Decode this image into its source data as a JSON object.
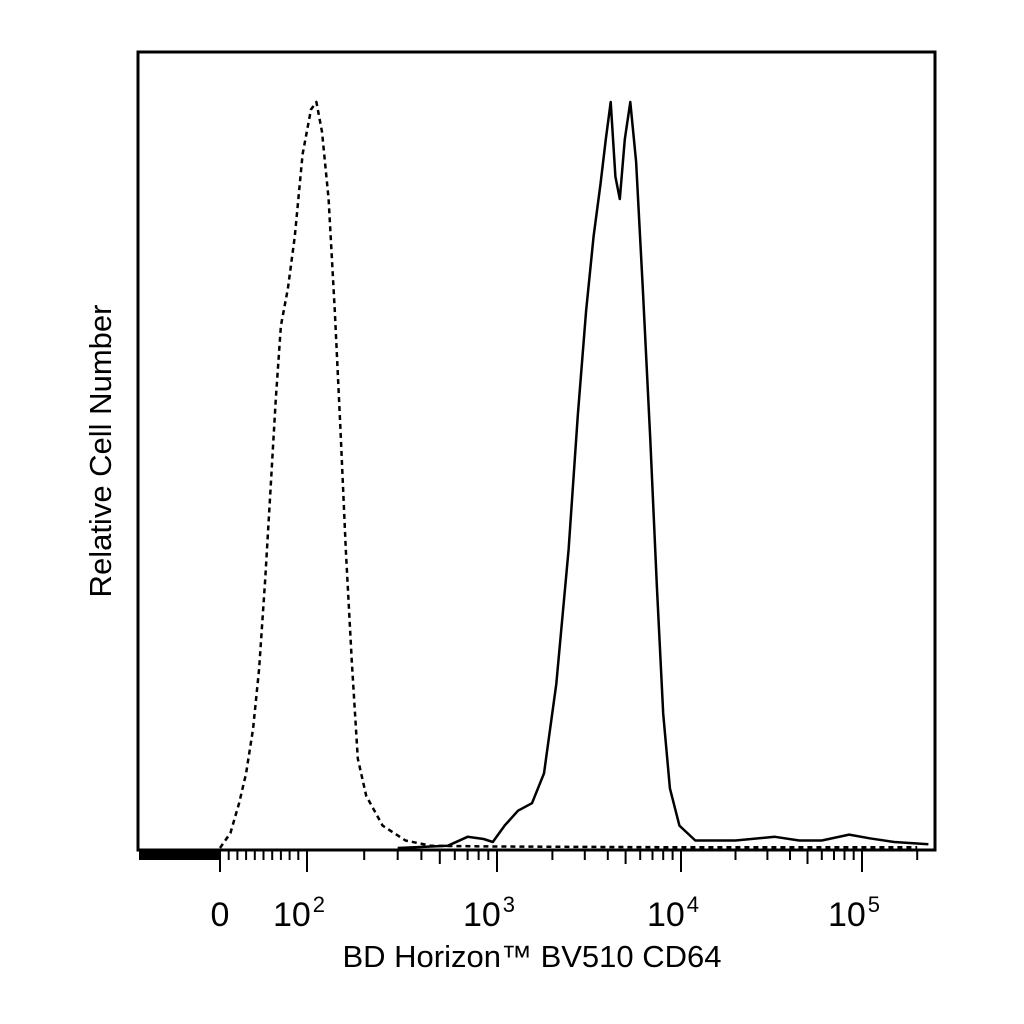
{
  "chart_data": {
    "type": "line",
    "title": "",
    "xlabel": "BD Horizon™ BV510 CD64",
    "ylabel": "Relative Cell Number",
    "x_scale": "biexponential (linear near 0, log above ~10^2)",
    "xlim": [
      -400,
      250000
    ],
    "ylim": [
      0,
      100
    ],
    "grid": false,
    "legend": "none",
    "x_tick_labels": [
      {
        "value": 0,
        "label": "0"
      },
      {
        "value": 100,
        "label": "10",
        "exp": "2"
      },
      {
        "value": 1000,
        "label": "10",
        "exp": "3"
      },
      {
        "value": 10000,
        "label": "10",
        "exp": "4"
      },
      {
        "value": 100000,
        "label": "10",
        "exp": "5"
      }
    ],
    "series": [
      {
        "style": "dashed",
        "color": "#000000",
        "points": [
          [
            0,
            0
          ],
          [
            12,
            2
          ],
          [
            22,
            6
          ],
          [
            30,
            10
          ],
          [
            38,
            16
          ],
          [
            45,
            24
          ],
          [
            52,
            36
          ],
          [
            58,
            48
          ],
          [
            64,
            60
          ],
          [
            70,
            70
          ],
          [
            78,
            75
          ],
          [
            86,
            82
          ],
          [
            95,
            93
          ],
          [
            105,
            99
          ],
          [
            112,
            100
          ],
          [
            120,
            96
          ],
          [
            130,
            87
          ],
          [
            140,
            72
          ],
          [
            150,
            56
          ],
          [
            160,
            40
          ],
          [
            172,
            25
          ],
          [
            185,
            12
          ],
          [
            205,
            7
          ],
          [
            250,
            3
          ],
          [
            330,
            1
          ],
          [
            450,
            0.3
          ],
          [
            1000,
            0.2
          ],
          [
            10000,
            0.1
          ],
          [
            200000,
            0.1
          ]
        ]
      },
      {
        "style": "solid",
        "color": "#000000",
        "points": [
          [
            300,
            0
          ],
          [
            550,
            0.3
          ],
          [
            700,
            1.5
          ],
          [
            850,
            1.2
          ],
          [
            950,
            0.8
          ],
          [
            1100,
            3
          ],
          [
            1300,
            5
          ],
          [
            1550,
            6
          ],
          [
            1800,
            10
          ],
          [
            2100,
            22
          ],
          [
            2450,
            40
          ],
          [
            2750,
            58
          ],
          [
            3050,
            72
          ],
          [
            3350,
            82
          ],
          [
            3650,
            89
          ],
          [
            3900,
            95
          ],
          [
            4150,
            100
          ],
          [
            4400,
            90
          ],
          [
            4650,
            87
          ],
          [
            4950,
            95
          ],
          [
            5300,
            100
          ],
          [
            5700,
            92
          ],
          [
            6200,
            75
          ],
          [
            6800,
            55
          ],
          [
            7400,
            35
          ],
          [
            8000,
            18
          ],
          [
            8700,
            8
          ],
          [
            9800,
            3
          ],
          [
            12000,
            1
          ],
          [
            20000,
            1
          ],
          [
            33000,
            1.5
          ],
          [
            45000,
            1
          ],
          [
            60000,
            1
          ],
          [
            85000,
            1.8
          ],
          [
            110000,
            1.3
          ],
          [
            150000,
            0.8
          ],
          [
            230000,
            0.5
          ]
        ]
      }
    ]
  }
}
